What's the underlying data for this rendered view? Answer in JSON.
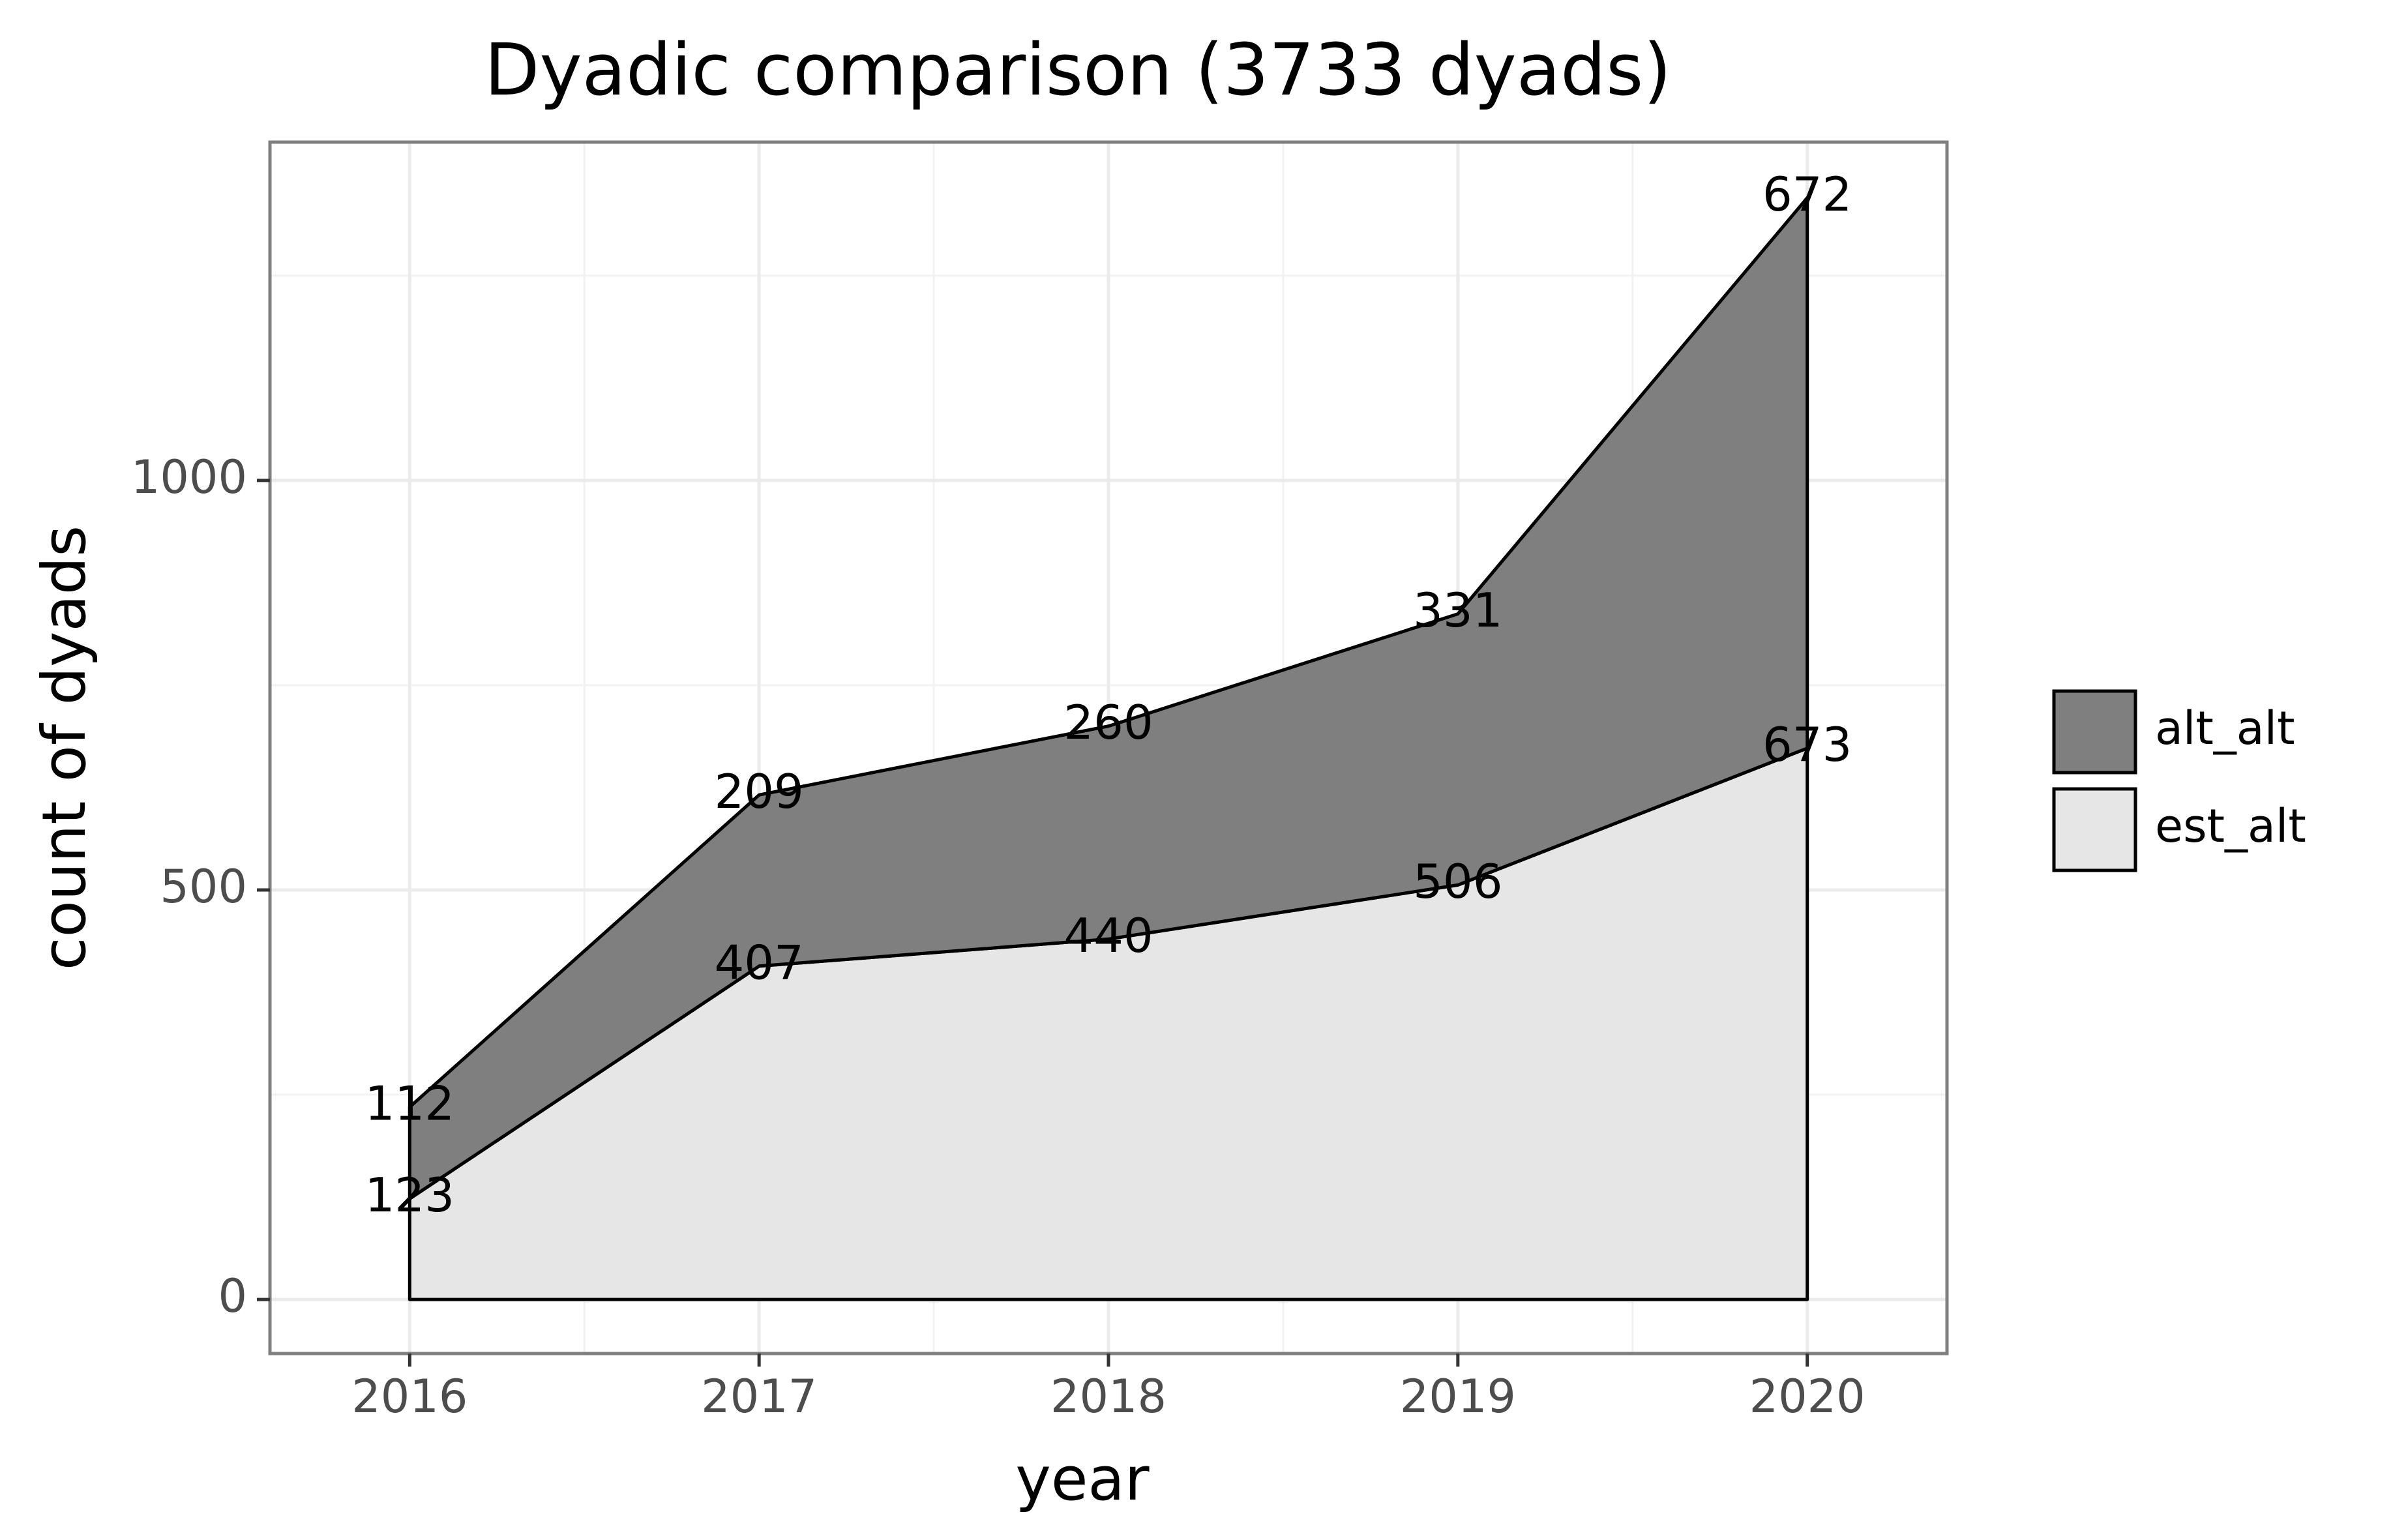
{
  "chart_data": {
    "type": "area",
    "stacked": true,
    "title": "Dyadic comparison (3733 dyads)",
    "xlabel": "year",
    "ylabel": "count of dyads",
    "x": [
      2016,
      2017,
      2018,
      2019,
      2020
    ],
    "x_tick_labels": [
      "2016",
      "2017",
      "2018",
      "2019",
      "2020"
    ],
    "y_tick_labels": [
      "0",
      "500",
      "1000"
    ],
    "y_ticks": [
      0,
      500,
      1000
    ],
    "xlim": [
      2015.6,
      2020.4
    ],
    "ylim": [
      -66,
      1413
    ],
    "grid": true,
    "legend_position": "right",
    "series": [
      {
        "name": "est_alt",
        "values": [
          123,
          407,
          440,
          506,
          673
        ],
        "labels": [
          "123",
          "407",
          "440",
          "506",
          "673"
        ],
        "color": "#e6e6e6"
      },
      {
        "name": "alt_alt",
        "values": [
          112,
          209,
          260,
          331,
          672
        ],
        "labels": [
          "112",
          "209",
          "260",
          "331",
          "672"
        ],
        "color": "#7f7f7f"
      }
    ]
  }
}
